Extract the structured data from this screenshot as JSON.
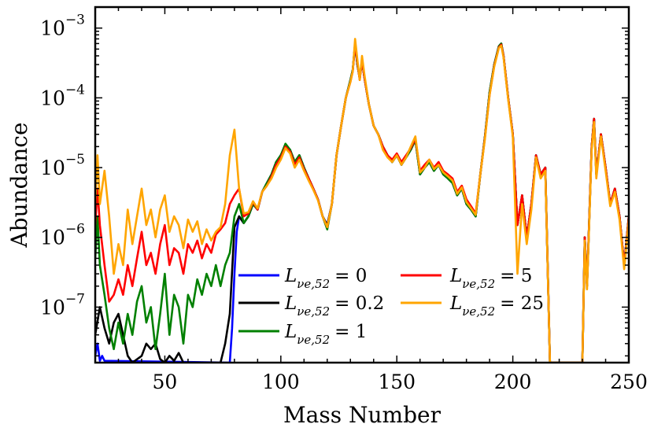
{
  "chart_data": {
    "type": "line",
    "title": "",
    "xlabel": "Mass Number",
    "ylabel": "Abundance",
    "xlim": [
      20,
      250
    ],
    "ylim": [
      1.6e-08,
      0.002
    ],
    "yscale": "log",
    "xticks": [
      50,
      100,
      150,
      200,
      250
    ],
    "yticks": [
      {
        "base": "10",
        "exp": "−7",
        "value": 1e-07
      },
      {
        "base": "10",
        "exp": "−6",
        "value": 1e-06
      },
      {
        "base": "10",
        "exp": "−5",
        "value": 1e-05
      },
      {
        "base": "10",
        "exp": "−4",
        "value": 0.0001
      },
      {
        "base": "10",
        "exp": "−3",
        "value": 0.001
      }
    ],
    "legend": {
      "position": "lower-center",
      "ncol": 2
    },
    "series": [
      {
        "name": "L_{νe,52} = 0",
        "label": "L",
        "sub": "νe,52",
        "value_text": "= 0",
        "color": "#0000ff",
        "x": [
          20,
          21,
          22,
          23,
          24,
          78,
          79,
          80,
          81,
          82,
          84,
          86,
          88,
          90,
          92,
          94,
          96,
          98,
          100,
          102,
          104,
          106,
          108,
          110,
          112,
          114,
          116,
          118,
          120,
          122,
          124,
          126,
          128,
          130,
          131,
          132,
          133,
          134,
          135,
          136,
          138,
          140,
          142,
          144,
          146,
          148,
          150,
          152,
          154,
          156,
          158,
          160,
          162,
          164,
          166,
          168,
          170,
          172,
          174,
          176,
          178,
          180,
          182,
          184,
          186,
          188,
          190,
          192,
          194,
          195,
          196,
          198,
          200,
          202,
          204,
          206,
          208,
          210,
          212,
          214,
          216,
          230,
          231,
          232,
          234,
          235,
          236,
          238,
          240,
          242,
          244,
          246,
          248,
          250
        ],
        "y": [
          2e-08,
          3e-08,
          1.7e-08,
          2e-08,
          1.7e-08,
          1.6e-08,
          5e-08,
          3e-07,
          1.2e-06,
          2e-06,
          1.6e-06,
          2e-06,
          3e-06,
          2.5e-06,
          4.5e-06,
          6e-06,
          8e-06,
          1.2e-05,
          1.5e-05,
          2e-05,
          1.8e-05,
          1.2e-05,
          1.5e-05,
          1e-05,
          7e-06,
          5e-06,
          3.5e-06,
          2e-06,
          1.5e-06,
          3e-06,
          1.5e-05,
          4e-05,
          0.0001,
          0.00018,
          0.00025,
          0.0006,
          0.0003,
          0.00019,
          0.00035,
          0.0002,
          8e-05,
          4e-05,
          3e-05,
          2e-05,
          1.5e-05,
          1.2e-05,
          1.5e-05,
          1.1e-05,
          1.4e-05,
          1.8e-05,
          2.5e-05,
          8e-06,
          1e-05,
          1.2e-05,
          9e-06,
          1.1e-05,
          8e-06,
          7e-06,
          6e-06,
          4e-06,
          5e-06,
          3e-06,
          2.5e-06,
          2e-06,
          8e-06,
          2.8e-05,
          0.00012,
          0.0003,
          0.00055,
          0.0006,
          0.0004,
          0.0001,
          3e-05,
          1.5e-06,
          4e-06,
          1e-06,
          3e-06,
          1.5e-05,
          8e-06,
          1e-05,
          1.6e-08,
          1.6e-08,
          1e-06,
          2e-07,
          2e-05,
          5e-05,
          8e-06,
          3e-05,
          1e-05,
          3e-06,
          5e-06,
          2e-06,
          4e-07,
          2e-06
        ]
      },
      {
        "name": "L_{νe,52} = 0.2",
        "label": "L",
        "sub": "νe,52",
        "value_text": "= 0.2",
        "color": "#000000",
        "x": [
          20,
          22,
          24,
          26,
          28,
          30,
          32,
          34,
          36,
          40,
          42,
          44,
          46,
          48,
          50,
          52,
          54,
          56,
          58,
          74,
          76,
          78,
          80,
          82,
          84,
          86,
          88,
          90,
          92,
          94,
          96,
          98,
          100,
          102,
          104,
          106,
          108,
          110,
          112,
          114,
          116,
          118,
          120,
          122,
          124,
          126,
          128,
          130,
          131,
          132,
          133,
          134,
          135,
          136,
          138,
          140,
          142,
          144,
          146,
          148,
          150,
          152,
          154,
          156,
          158,
          160,
          162,
          164,
          166,
          168,
          170,
          172,
          174,
          176,
          178,
          180,
          182,
          184,
          186,
          188,
          190,
          192,
          194,
          195,
          196,
          198,
          200,
          202,
          204,
          206,
          208,
          210,
          212,
          214,
          216,
          230,
          231,
          232,
          234,
          235,
          236,
          238,
          240,
          242,
          244,
          246,
          248,
          250
        ],
        "y": [
          4e-08,
          1e-07,
          5e-08,
          3e-08,
          6e-08,
          8e-08,
          4e-08,
          2e-08,
          1.6e-08,
          2e-08,
          3e-08,
          2.5e-08,
          3e-08,
          1.8e-08,
          1.6e-08,
          2e-08,
          1.7e-08,
          2.2e-08,
          1.6e-08,
          1.6e-08,
          3e-08,
          8e-08,
          1.4e-06,
          2e-06,
          1.6e-06,
          2e-06,
          3e-06,
          2.5e-06,
          4.5e-06,
          6e-06,
          8e-06,
          1.2e-05,
          1.5e-05,
          2.1e-05,
          1.8e-05,
          1.2e-05,
          1.5e-05,
          1e-05,
          7e-06,
          5e-06,
          3.5e-06,
          2e-06,
          1.5e-06,
          3e-06,
          1.5e-05,
          4e-05,
          0.0001,
          0.00018,
          0.00025,
          0.0006,
          0.0003,
          0.00019,
          0.00035,
          0.0002,
          8e-05,
          4e-05,
          3e-05,
          2e-05,
          1.5e-05,
          1.2e-05,
          1.5e-05,
          1.1e-05,
          1.4e-05,
          1.8e-05,
          2.5e-05,
          8e-06,
          1e-05,
          1.2e-05,
          9e-06,
          1.1e-05,
          8e-06,
          7e-06,
          6e-06,
          4e-06,
          5e-06,
          3e-06,
          2.5e-06,
          2e-06,
          8e-06,
          2.8e-05,
          0.00012,
          0.0003,
          0.00055,
          0.0006,
          0.0004,
          0.0001,
          3e-05,
          1.5e-06,
          4e-06,
          1e-06,
          3e-06,
          1.5e-05,
          8e-06,
          1e-05,
          1.6e-08,
          1.6e-08,
          1e-06,
          2e-07,
          2e-05,
          5e-05,
          8e-06,
          3e-05,
          1e-05,
          3e-06,
          5e-06,
          2e-06,
          4e-07,
          2e-06
        ]
      },
      {
        "name": "L_{νe,52} = 1",
        "label": "L",
        "sub": "νe,52",
        "value_text": "= 1",
        "color": "#008000",
        "x": [
          20,
          21,
          22,
          24,
          26,
          28,
          30,
          32,
          34,
          36,
          38,
          40,
          42,
          44,
          46,
          48,
          50,
          52,
          54,
          56,
          58,
          60,
          62,
          64,
          66,
          68,
          70,
          72,
          74,
          76,
          78,
          80,
          82,
          84,
          86,
          88,
          90,
          92,
          94,
          96,
          98,
          100,
          102,
          104,
          106,
          108,
          110,
          112,
          114,
          116,
          118,
          120,
          122,
          124,
          126,
          128,
          130,
          131,
          132,
          133,
          134,
          135,
          136,
          138,
          140,
          142,
          144,
          146,
          148,
          150,
          152,
          154,
          156,
          158,
          160,
          162,
          164,
          166,
          168,
          170,
          172,
          174,
          176,
          178,
          180,
          182,
          184,
          186,
          188,
          190,
          192,
          194,
          195,
          196,
          198,
          200,
          202,
          204,
          206,
          208,
          210,
          212,
          214,
          216,
          230,
          231,
          232,
          234,
          235,
          236,
          238,
          240,
          242,
          244,
          246,
          248,
          250
        ],
        "y": [
          5e-07,
          2e-06,
          4e-07,
          1.5e-07,
          5e-08,
          2.5e-08,
          6e-08,
          3e-08,
          8e-08,
          4e-08,
          1.2e-07,
          2e-07,
          6e-08,
          1e-07,
          2.5e-08,
          8e-08,
          3e-07,
          4e-08,
          1.5e-07,
          1e-07,
          3e-08,
          1.5e-07,
          1e-07,
          2.5e-07,
          1.5e-07,
          3e-07,
          2e-07,
          4e-07,
          2e-07,
          4e-07,
          6e-07,
          2e-06,
          3e-06,
          1.6e-06,
          2e-06,
          3e-06,
          2.5e-06,
          4.5e-06,
          6e-06,
          8e-06,
          1.2e-05,
          1.5e-05,
          2.2e-05,
          1.8e-05,
          1.2e-05,
          1.5e-05,
          1e-05,
          7e-06,
          5e-06,
          3.5e-06,
          2e-06,
          1.3e-06,
          3e-06,
          1.5e-05,
          4e-05,
          0.0001,
          0.00018,
          0.00025,
          0.0006,
          0.0003,
          0.00019,
          0.00035,
          0.0002,
          8e-05,
          4e-05,
          3e-05,
          2e-05,
          1.5e-05,
          1.2e-05,
          1.5e-05,
          1.1e-05,
          1.4e-05,
          1.8e-05,
          2.5e-05,
          8e-06,
          1e-05,
          1.2e-05,
          9e-06,
          1.1e-05,
          8e-06,
          7e-06,
          6e-06,
          4e-06,
          5e-06,
          3e-06,
          2.5e-06,
          2e-06,
          8e-06,
          2.8e-05,
          0.00012,
          0.0003,
          0.00055,
          0.0006,
          0.0004,
          0.0001,
          3e-05,
          1.5e-06,
          4e-06,
          1e-06,
          3e-06,
          1.5e-05,
          8e-06,
          1e-05,
          1.6e-08,
          1.6e-08,
          1e-06,
          2e-07,
          2e-05,
          5e-05,
          8e-06,
          3e-05,
          1e-05,
          3e-06,
          5e-06,
          2e-06,
          4e-07,
          2e-06
        ]
      },
      {
        "name": "L_{νe,52} = 5",
        "label": "L",
        "sub": "νe,52",
        "value_text": "= 5",
        "color": "#ff0000",
        "x": [
          20,
          21,
          22,
          24,
          26,
          28,
          30,
          32,
          34,
          36,
          38,
          40,
          42,
          44,
          46,
          48,
          50,
          52,
          54,
          56,
          58,
          60,
          62,
          64,
          66,
          68,
          70,
          72,
          74,
          76,
          78,
          80,
          82,
          84,
          86,
          88,
          90,
          92,
          94,
          96,
          98,
          100,
          102,
          104,
          106,
          108,
          110,
          112,
          114,
          116,
          118,
          120,
          122,
          124,
          126,
          128,
          130,
          131,
          132,
          133,
          134,
          135,
          136,
          138,
          140,
          142,
          144,
          146,
          148,
          150,
          152,
          154,
          156,
          158,
          160,
          162,
          164,
          166,
          168,
          170,
          172,
          174,
          176,
          178,
          180,
          182,
          184,
          186,
          188,
          190,
          192,
          194,
          195,
          196,
          198,
          200,
          202,
          204,
          206,
          208,
          210,
          212,
          214,
          216,
          230,
          231,
          232,
          234,
          235,
          236,
          238,
          240,
          242,
          244,
          246,
          248,
          250
        ],
        "y": [
          1.5e-06,
          5e-06,
          1.5e-06,
          4e-07,
          1.2e-07,
          1.5e-07,
          2.5e-07,
          1.5e-07,
          4e-07,
          2e-07,
          5e-07,
          1.2e-06,
          4e-07,
          6e-07,
          3e-07,
          8e-07,
          1.5e-06,
          4e-07,
          7e-07,
          6e-07,
          3e-07,
          8e-07,
          6e-07,
          9e-07,
          5e-07,
          8e-07,
          6e-07,
          1.1e-06,
          1.3e-06,
          1.6e-06,
          3e-06,
          4e-06,
          5e-06,
          2e-06,
          2.2e-06,
          3.2e-06,
          2.5e-06,
          4.5e-06,
          5.5e-06,
          7.5e-06,
          1.1e-05,
          1.4e-05,
          2e-05,
          1.7e-05,
          1.1e-05,
          1.4e-05,
          9.5e-06,
          7e-06,
          5e-06,
          3.5e-06,
          2e-06,
          1.4e-06,
          3e-06,
          1.5e-05,
          4e-05,
          0.0001,
          0.00017,
          0.00024,
          0.0006,
          0.00032,
          0.00018,
          0.00035,
          0.0002,
          8e-05,
          4e-05,
          3e-05,
          2e-05,
          1.5e-05,
          1.3e-05,
          1.6e-05,
          1.2e-05,
          1.5e-05,
          1.9e-05,
          2.6e-05,
          9e-06,
          1.1e-05,
          1.3e-05,
          1e-05,
          1.2e-05,
          9e-06,
          8e-06,
          7e-06,
          4.5e-06,
          5.5e-06,
          3.5e-06,
          2.8e-06,
          2.2e-06,
          8e-06,
          2.7e-05,
          0.00011,
          0.00029,
          0.00053,
          0.00058,
          0.0004,
          0.0001,
          3e-05,
          1.5e-06,
          4e-06,
          1e-06,
          3e-06,
          1.5e-05,
          8e-06,
          1e-05,
          1.6e-08,
          1.6e-08,
          1e-06,
          2e-07,
          2e-05,
          5e-05,
          8e-06,
          3e-05,
          1e-05,
          3e-06,
          5e-06,
          2e-06,
          4e-07,
          2e-06
        ]
      },
      {
        "name": "L_{νe,52} = 25",
        "label": "L",
        "sub": "νe,52",
        "value_text": "= 25",
        "color": "#ffa500",
        "x": [
          20,
          21,
          22,
          24,
          26,
          28,
          30,
          32,
          34,
          36,
          38,
          40,
          42,
          44,
          46,
          48,
          50,
          52,
          54,
          56,
          58,
          60,
          62,
          64,
          66,
          68,
          70,
          72,
          74,
          76,
          78,
          80,
          82,
          84,
          86,
          88,
          90,
          92,
          94,
          96,
          98,
          100,
          102,
          104,
          106,
          108,
          110,
          112,
          114,
          116,
          118,
          120,
          122,
          124,
          126,
          128,
          130,
          131,
          132,
          133,
          134,
          135,
          136,
          138,
          140,
          142,
          144,
          146,
          148,
          150,
          152,
          154,
          156,
          158,
          160,
          162,
          164,
          166,
          168,
          170,
          172,
          174,
          176,
          178,
          180,
          182,
          184,
          186,
          188,
          190,
          192,
          194,
          195,
          196,
          198,
          200,
          202,
          204,
          206,
          208,
          210,
          212,
          214,
          216,
          230,
          231,
          232,
          234,
          235,
          236,
          238,
          240,
          242,
          244,
          246,
          248,
          250
        ],
        "y": [
          3e-06,
          1.5e-05,
          3e-06,
          9e-06,
          2e-06,
          3e-07,
          8e-07,
          4e-07,
          2.5e-06,
          8e-07,
          2e-06,
          5e-06,
          1.5e-06,
          2.5e-06,
          1e-06,
          2.5e-06,
          4e-06,
          1.2e-06,
          2e-06,
          1.5e-06,
          7e-07,
          1.8e-06,
          1.2e-06,
          1.7e-06,
          8e-07,
          1.3e-06,
          9e-07,
          1.2e-06,
          1.4e-06,
          3e-06,
          1.5e-05,
          3.5e-05,
          5e-06,
          2.2e-06,
          2.3e-06,
          3.3e-06,
          2.6e-06,
          4.5e-06,
          5.5e-06,
          7e-06,
          1e-05,
          1.3e-05,
          1.9e-05,
          1.6e-05,
          1e-05,
          1.3e-05,
          9e-06,
          6.5e-06,
          4.8e-06,
          3.4e-06,
          2e-06,
          1.4e-06,
          3e-06,
          1.5e-05,
          4e-05,
          0.0001,
          0.00017,
          0.00024,
          0.0007,
          0.00035,
          0.00018,
          0.0004,
          0.00022,
          8e-05,
          4e-05,
          3e-05,
          1.8e-05,
          1.4e-05,
          1.2e-05,
          1.5e-05,
          1.1e-05,
          1.4e-05,
          2e-05,
          2.8e-05,
          8.5e-06,
          1e-05,
          1.3e-05,
          9.5e-06,
          1.1e-05,
          8.5e-06,
          7.5e-06,
          6.5e-06,
          4.2e-06,
          5.2e-06,
          3.2e-06,
          2.6e-06,
          2.1e-06,
          8e-06,
          2.6e-05,
          0.00011,
          0.00028,
          0.00052,
          0.00056,
          0.00038,
          9.5e-05,
          2.8e-05,
          3e-07,
          3e-06,
          8e-07,
          2.5e-06,
          1.4e-05,
          7e-06,
          9e-06,
          1.6e-08,
          1.6e-08,
          9e-07,
          1.8e-07,
          1.8e-05,
          4.5e-05,
          7e-06,
          2.8e-05,
          9e-06,
          2.8e-06,
          4.5e-06,
          1.8e-06,
          3.5e-07,
          1.8e-06
        ]
      }
    ]
  }
}
